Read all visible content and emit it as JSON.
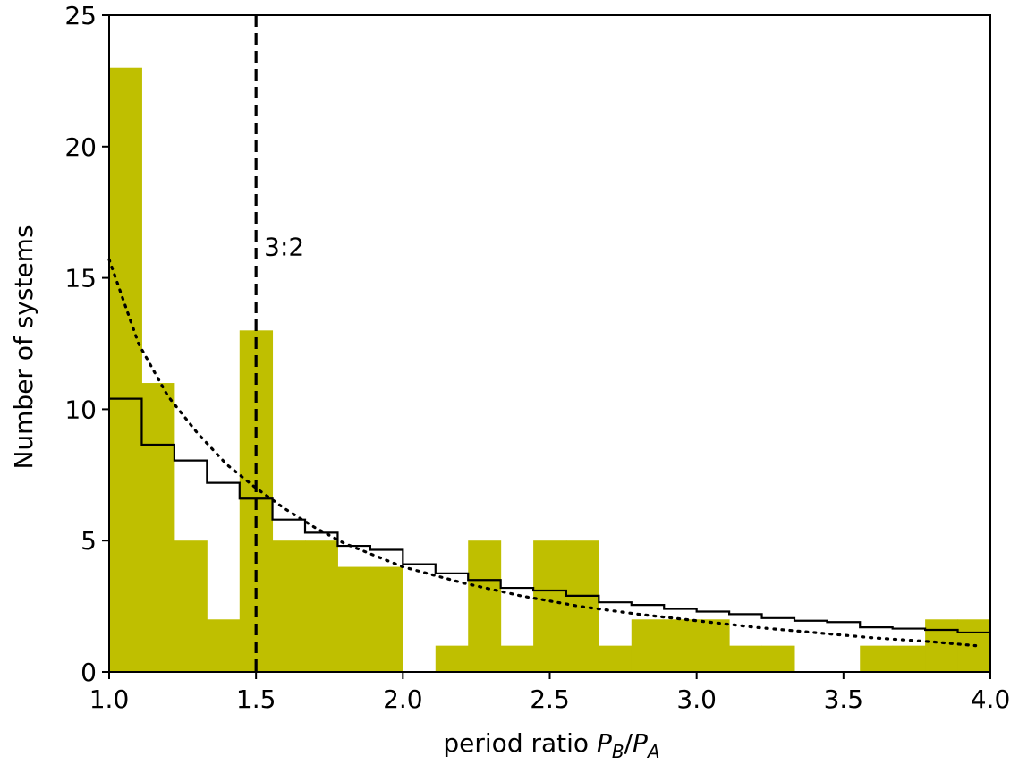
{
  "chart_data": {
    "type": "bar",
    "xlabel_prefix": "period ratio ",
    "xlabel_var": "P",
    "xlabel_sub1": "B",
    "xlabel_slash": "/",
    "xlabel_var2": "P",
    "xlabel_sub2": "A",
    "ylabel": "Number of systems",
    "xlim": [
      1.0,
      4.0
    ],
    "ylim": [
      0,
      25
    ],
    "xticks": [
      1.0,
      1.5,
      2.0,
      2.5,
      3.0,
      3.5,
      4.0
    ],
    "xtick_labels": [
      "1.0",
      "1.5",
      "2.0",
      "2.5",
      "3.0",
      "3.5",
      "4.0"
    ],
    "yticks": [
      0,
      5,
      10,
      15,
      20,
      25
    ],
    "ytick_labels": [
      "0",
      "5",
      "10",
      "15",
      "20",
      "25"
    ],
    "bin_edges": [
      1.0,
      1.111,
      1.222,
      1.333,
      1.444,
      1.556,
      1.667,
      1.778,
      1.889,
      2.0,
      2.111,
      2.222,
      2.333,
      2.444,
      2.556,
      2.667,
      2.778,
      2.889,
      3.0,
      3.111,
      3.222,
      3.333,
      3.444,
      3.556,
      3.667,
      3.778,
      3.889,
      4.0
    ],
    "histogram_counts": [
      23,
      11,
      5,
      2,
      13,
      5,
      5,
      4,
      4,
      0,
      1,
      5,
      1,
      5,
      5,
      1,
      2,
      2,
      2,
      1,
      1,
      0,
      0,
      1,
      1,
      2,
      2
    ],
    "model_step_values": [
      10.4,
      8.65,
      8.05,
      7.2,
      6.6,
      5.8,
      5.3,
      4.8,
      4.65,
      4.1,
      3.75,
      3.5,
      3.2,
      3.1,
      2.9,
      2.65,
      2.55,
      2.4,
      2.3,
      2.2,
      2.05,
      1.95,
      1.9,
      1.7,
      1.65,
      1.6,
      1.5
    ],
    "dotted_curve": {
      "x": [
        1.0,
        1.1,
        1.2,
        1.3,
        1.4,
        1.5,
        1.6,
        1.7,
        1.8,
        2.0,
        2.2,
        2.4,
        2.6,
        2.8,
        3.0,
        3.2,
        3.4,
        3.6,
        3.8,
        3.95
      ],
      "y": [
        15.7,
        12.5,
        10.5,
        9.1,
        7.9,
        7.0,
        6.2,
        5.5,
        4.9,
        4.0,
        3.4,
        2.9,
        2.5,
        2.2,
        1.95,
        1.7,
        1.5,
        1.3,
        1.15,
        1.0
      ]
    },
    "vline": {
      "x": 1.5,
      "label": "3:2",
      "label_y": 16.2
    },
    "colors": {
      "bars": "#bfbf00",
      "lines": "#000000"
    },
    "grid": false
  }
}
